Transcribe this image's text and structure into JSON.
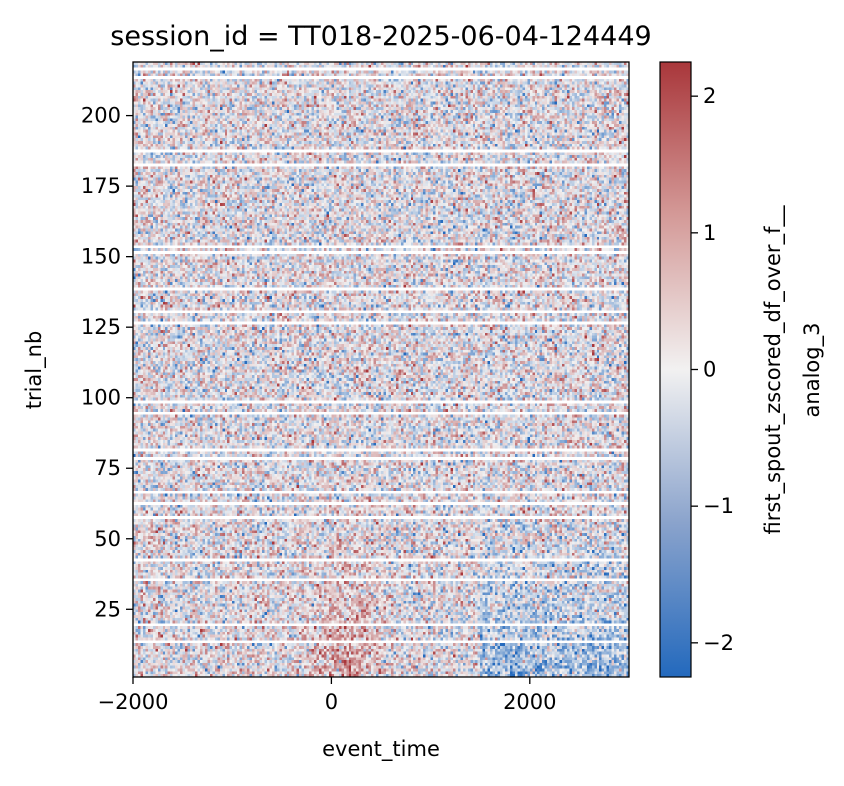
{
  "chart_data": {
    "type": "heatmap",
    "title": "session_id = TT018-2025-06-04-124449",
    "xlabel": "event_time",
    "ylabel": "trial_nb",
    "xlim": [
      -2000,
      3000
    ],
    "ylim": [
      1,
      219
    ],
    "xticks": [
      -2000,
      0,
      2000
    ],
    "xtick_labels": [
      "−2000",
      "0",
      "2000"
    ],
    "yticks": [
      25,
      50,
      75,
      100,
      125,
      150,
      175,
      200
    ],
    "ytick_labels": [
      "25",
      "50",
      "75",
      "100",
      "125",
      "150",
      "175",
      "200"
    ],
    "colorbar": {
      "label_line1": "first_spout_zscored_df_over_f__",
      "label_line2": "analog_3",
      "range": [
        -2.25,
        2.25
      ],
      "ticks": [
        -2,
        -1,
        0,
        1,
        2
      ],
      "tick_labels": [
        "−2",
        "−1",
        "0",
        "1",
        "2"
      ],
      "colormap": "vlag",
      "color_low": "#2369bd",
      "color_mid": "#f2f1f1",
      "color_high": "#a9373b"
    },
    "missing_trials": [
      14,
      20,
      36,
      43,
      58,
      63,
      67,
      79,
      82,
      95,
      99,
      127,
      131,
      139,
      152,
      154,
      183,
      188,
      214,
      217
    ],
    "value_model": {
      "noise_sd": 1.0,
      "early_trials_pattern": "positive ~0 to 500 ms, negative ~1500 to 3000 ms in trials 1-60"
    }
  }
}
